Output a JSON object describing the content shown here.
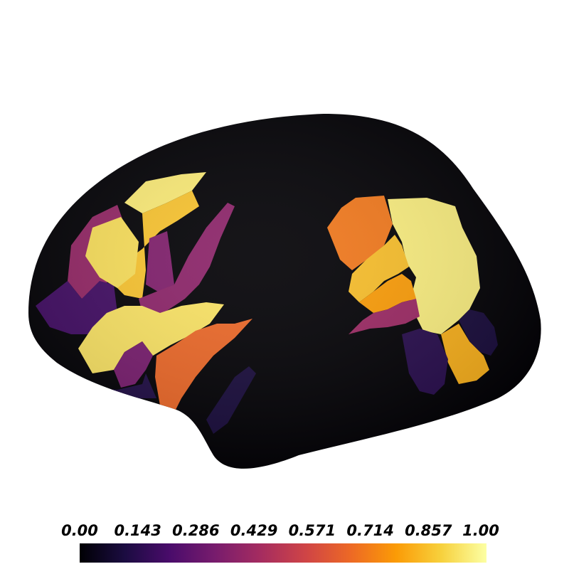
{
  "figure": {
    "type": "brain-surface-parcellation",
    "hemisphere_view": "lateral",
    "background_color": "#ffffff",
    "surface_color": "#020105",
    "colormap": "inferno",
    "value_range": [
      0.0,
      1.0
    ]
  },
  "colorbar": {
    "tick_labels": [
      "0.00",
      "0.143",
      "0.286",
      "0.429",
      "0.571",
      "0.714",
      "0.857",
      "1.00"
    ],
    "stops": [
      "#000004",
      "#1b0c41",
      "#4a0c6b",
      "#781c6d",
      "#a52c60",
      "#cf4446",
      "#ed6925",
      "#fb9b06",
      "#f7d13d",
      "#fcffa4"
    ]
  },
  "regions": {
    "frontal_superior": 0.95,
    "frontal_posterior_yellow": 0.86,
    "frontal_mid_yellow": 0.92,
    "frontal_polar_purple": 0.4,
    "frontal_dark_purple": 0.2,
    "frontal_mid_purple": 0.35,
    "frontal_strip_purple": 0.38,
    "frontal_lower_yellow": 0.93,
    "frontal_lower_purple": 0.33,
    "frontal_orbital": 0.12,
    "opercular_orange": 0.66,
    "temporal_dark": 0.1,
    "parietal_orange": 0.7,
    "parietal_yellow": 0.96,
    "parietal_mid_yellow": 0.85,
    "parietal_orange_band": 0.78,
    "parietal_purple": 0.42,
    "occipital_yellow": 0.82,
    "occipital_dark": 0.14,
    "occipital_far_dark": 0.1
  }
}
